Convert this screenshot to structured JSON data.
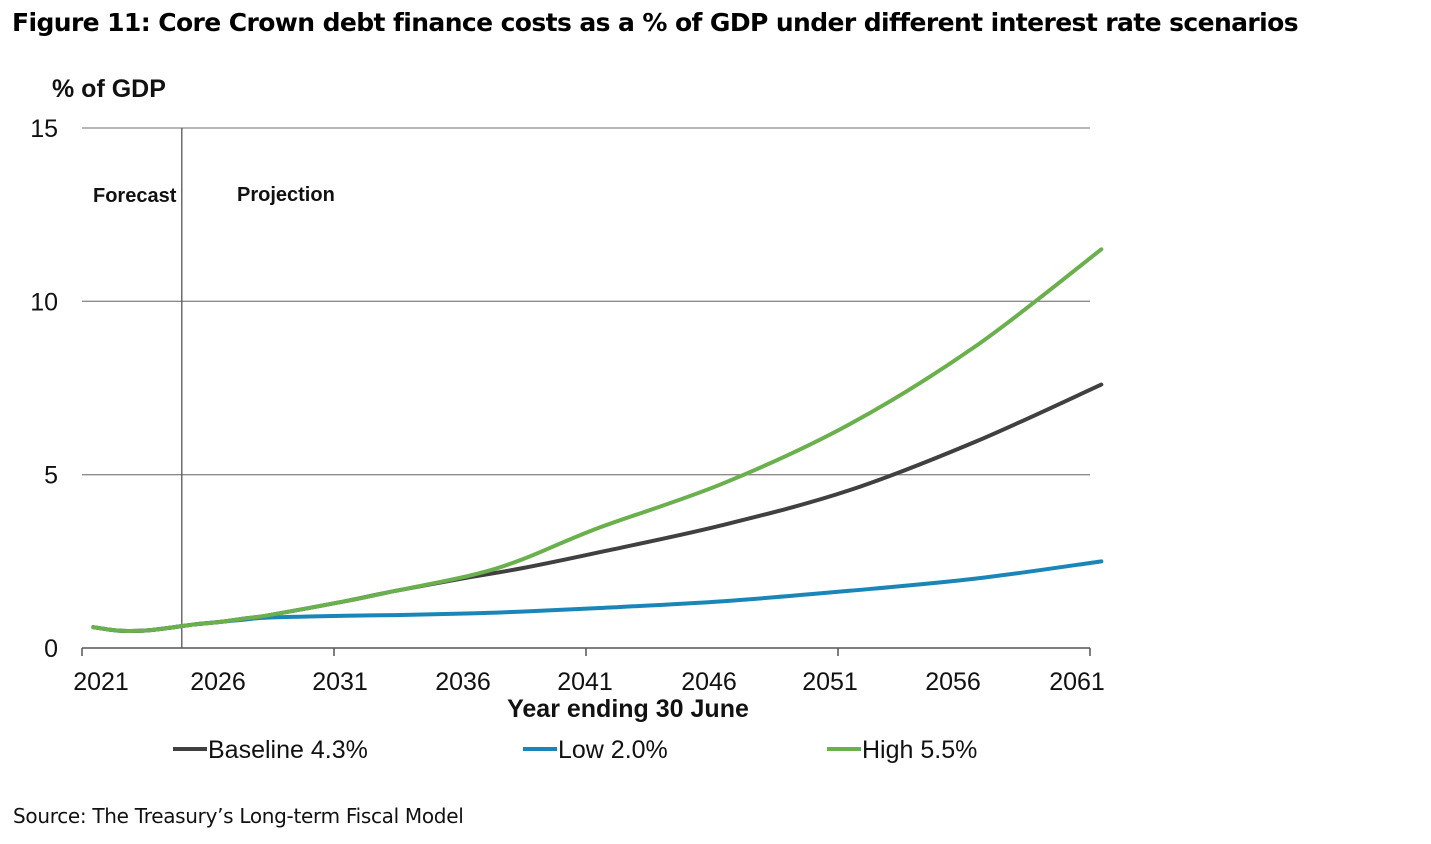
{
  "figure": {
    "title": "Figure 11: Core Crown debt finance costs as a % of GDP under different interest rate scenarios",
    "source": "Source: The Treasury’s Long-term Fiscal Model"
  },
  "chart_data": {
    "type": "line",
    "title": "Figure 11: Core Crown debt finance costs as a % of GDP under different interest rate scenarios",
    "ylabel": "% of GDP",
    "xlabel": "Year ending 30 June",
    "ylim": [
      0,
      15
    ],
    "xlim": [
      2021,
      2061
    ],
    "yticks": [
      0,
      5,
      10,
      15
    ],
    "xticks": [
      2021,
      2026,
      2031,
      2036,
      2041,
      2046,
      2051,
      2056,
      2061
    ],
    "grid": "horizontal",
    "legend_position": "bottom",
    "annotations": [
      {
        "text": "Forecast",
        "side": "left-of-divider"
      },
      {
        "text": "Projection",
        "side": "right-of-divider"
      }
    ],
    "forecast_divider_year": 2025,
    "x": [
      2021,
      2022,
      2023,
      2024,
      2025,
      2026,
      2027,
      2028,
      2031,
      2033,
      2036,
      2038,
      2041,
      2046,
      2051,
      2056,
      2061
    ],
    "series": [
      {
        "name": "Baseline 4.3%",
        "color": "#404040",
        "values": [
          0.6,
          0.5,
          0.5,
          0.58,
          0.68,
          0.75,
          0.85,
          0.95,
          1.35,
          1.65,
          2.05,
          2.3,
          2.75,
          3.55,
          4.55,
          5.95,
          7.6
        ]
      },
      {
        "name": "Low 2.0%",
        "color": "#1a86b8",
        "values": [
          0.6,
          0.5,
          0.5,
          0.58,
          0.68,
          0.75,
          0.82,
          0.88,
          0.93,
          0.95,
          1.0,
          1.05,
          1.15,
          1.35,
          1.65,
          2.0,
          2.5
        ]
      },
      {
        "name": "High 5.5%",
        "color": "#6ab04c",
        "values": [
          0.6,
          0.5,
          0.5,
          0.58,
          0.68,
          0.75,
          0.85,
          0.95,
          1.35,
          1.65,
          2.1,
          2.55,
          3.45,
          4.75,
          6.45,
          8.7,
          11.5
        ]
      }
    ]
  }
}
